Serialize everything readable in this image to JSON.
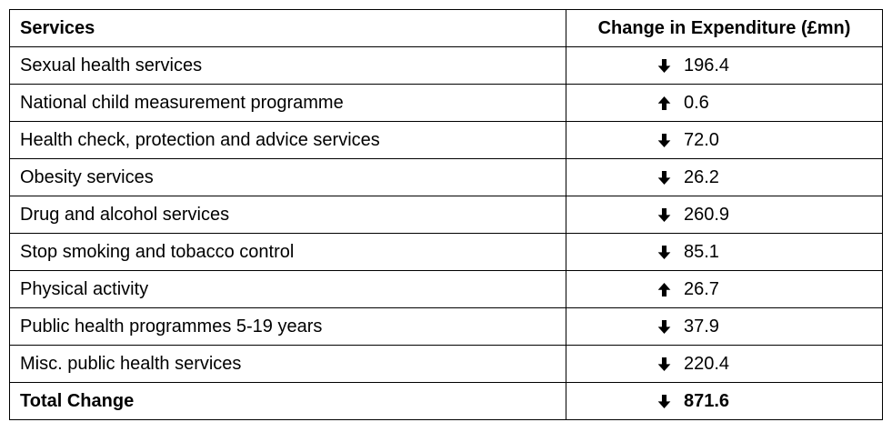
{
  "table": {
    "columns": [
      {
        "label": "Services"
      },
      {
        "label": "Change in Expenditure (£mn)"
      }
    ],
    "rows": [
      {
        "service": "Sexual health services",
        "direction": "down",
        "value": "196.4",
        "total": false
      },
      {
        "service": "National child measurement programme",
        "direction": "up",
        "value": "0.6",
        "total": false
      },
      {
        "service": "Health check, protection and advice services",
        "direction": "down",
        "value": "72.0",
        "total": false
      },
      {
        "service": "Obesity services",
        "direction": "down",
        "value": "26.2",
        "total": false
      },
      {
        "service": "Drug and alcohol services",
        "direction": "down",
        "value": "260.9",
        "total": false
      },
      {
        "service": "Stop smoking and tobacco control",
        "direction": "down",
        "value": "85.1",
        "total": false
      },
      {
        "service": "Physical activity",
        "direction": "up",
        "value": "26.7",
        "total": false
      },
      {
        "service": "Public health programmes 5-19 years",
        "direction": "down",
        "value": "37.9",
        "total": false
      },
      {
        "service": "Misc. public health services",
        "direction": "down",
        "value": "220.4",
        "total": false
      },
      {
        "service": "Total Change",
        "direction": "down",
        "value": "871.6",
        "total": true
      }
    ],
    "colors": {
      "text": "#000000",
      "border": "#000000",
      "background": "#ffffff",
      "arrow": "#000000"
    }
  }
}
